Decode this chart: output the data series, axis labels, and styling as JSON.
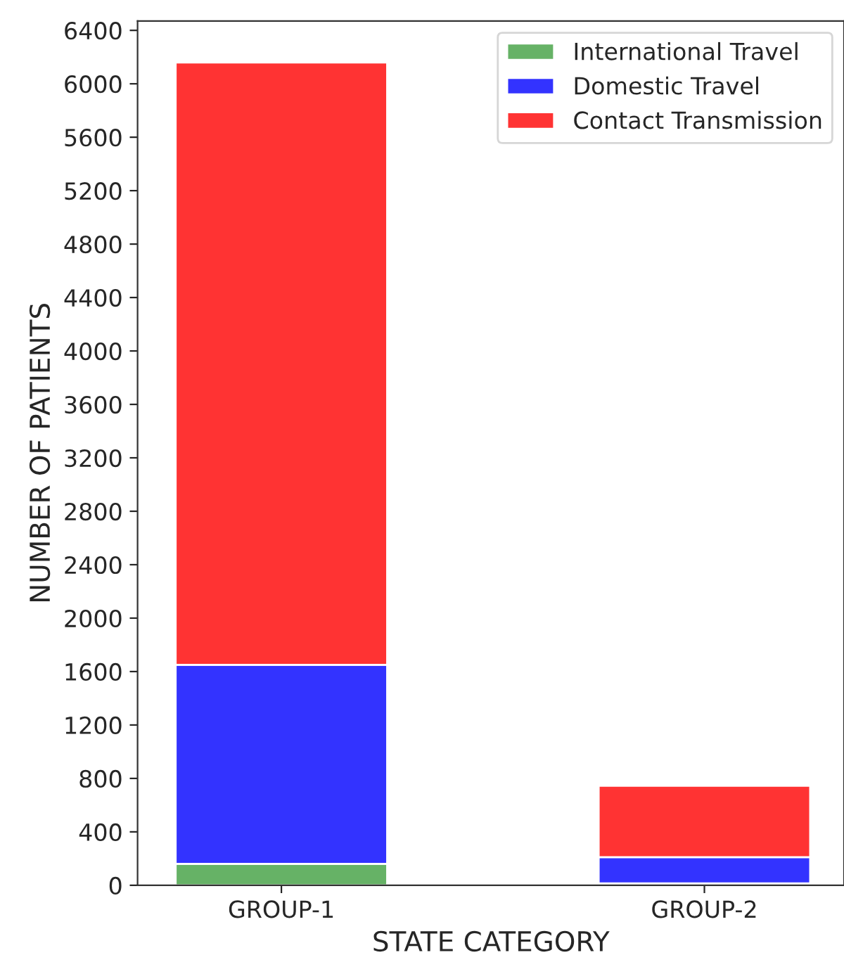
{
  "chart_data": {
    "type": "bar",
    "stacked": true,
    "xlabel": "STATE CATEGORY",
    "ylabel": "NUMBER OF PATIENTS",
    "categories": [
      "GROUP-1",
      "GROUP-2"
    ],
    "series": [
      {
        "name": "International Travel",
        "color": "#66b266",
        "values": [
          160,
          15
        ]
      },
      {
        "name": "Domestic Travel",
        "color": "#3333ff",
        "values": [
          1490,
          195
        ]
      },
      {
        "name": "Contact Transmission",
        "color": "#ff3333",
        "values": [
          4510,
          535
        ]
      }
    ],
    "ylim": [
      0,
      6470
    ],
    "yticks": [
      0,
      400,
      800,
      1200,
      1600,
      2000,
      2400,
      2800,
      3200,
      3600,
      4000,
      4400,
      4800,
      5200,
      5600,
      6000,
      6400
    ],
    "grid": false,
    "legend": "top right"
  }
}
